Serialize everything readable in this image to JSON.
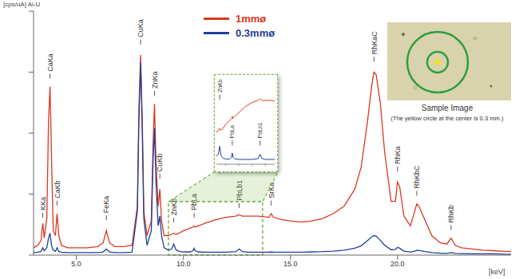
{
  "chart_data": [
    {
      "type": "line",
      "x_label": "[keV]",
      "y_label": "[cps/uA] Al-U",
      "legend": "top",
      "grid": false,
      "tick_labels": "x",
      "x": [
        3.0,
        3.2,
        3.35,
        3.43,
        3.5,
        3.62,
        3.7,
        3.77,
        3.84,
        3.92,
        4.02,
        4.1,
        4.18,
        4.3,
        4.6,
        5.0,
        5.5,
        6.0,
        6.25,
        6.4,
        6.55,
        6.8,
        7.2,
        7.6,
        7.85,
        7.92,
        8.0,
        8.08,
        8.15,
        8.3,
        8.5,
        8.58,
        8.65,
        8.72,
        8.82,
        8.9,
        8.98,
        9.1,
        9.3,
        9.45,
        9.55,
        9.65,
        9.8,
        10.0,
        10.3,
        10.45,
        10.5,
        10.55,
        10.7,
        11.0,
        11.5,
        12.0,
        12.45,
        12.6,
        12.75,
        13.0,
        13.5,
        14.0,
        14.1,
        14.2,
        14.6,
        15.0,
        15.5,
        16.0,
        16.5,
        17.0,
        17.5,
        18.0,
        18.3,
        18.6,
        18.8,
        18.9,
        19.0,
        19.2,
        19.4,
        19.7,
        19.9,
        20.0,
        20.1,
        20.3,
        20.6,
        20.8,
        20.9,
        21.0,
        21.3,
        21.6,
        22.0,
        22.3,
        22.5,
        22.7,
        23.0,
        23.5,
        24.0,
        24.5,
        25.0,
        25.3
      ],
      "series": [
        {
          "name": "1mmø",
          "color": "#d9381e",
          "values": [
            3,
            4,
            6,
            13,
            7,
            15,
            55,
            69,
            40,
            10,
            8,
            17,
            8,
            4,
            3,
            3,
            3,
            3.5,
            5,
            10,
            5,
            3.5,
            3.5,
            4,
            20,
            60,
            82,
            55,
            18,
            8,
            14,
            45,
            62,
            38,
            20,
            27,
            14,
            8,
            8,
            8.5,
            9,
            8.5,
            9,
            10,
            11,
            11.5,
            12,
            11.5,
            12,
            13,
            14.5,
            15.5,
            16,
            16.5,
            16,
            16,
            16,
            15.5,
            17,
            15.5,
            14.5,
            14,
            13.5,
            14,
            15,
            17,
            20,
            27,
            36,
            55,
            70,
            75,
            74,
            62,
            42,
            22,
            22,
            30,
            28,
            16,
            12,
            18,
            21,
            20,
            14,
            8,
            5,
            4.5,
            7,
            4,
            3,
            2.5,
            2,
            1.8,
            1.5,
            1.5
          ]
        },
        {
          "name": "0.3mmø",
          "color": "#1f3e9c",
          "values": [
            1,
            1.2,
            1.5,
            3,
            1.8,
            3,
            7,
            9,
            4,
            2,
            1.5,
            3,
            1.5,
            1.2,
            1,
            1,
            1,
            1,
            1.3,
            2.5,
            1.3,
            1,
            1,
            1.2,
            18,
            55,
            79,
            50,
            15,
            4,
            10,
            38,
            52,
            30,
            12,
            16,
            8,
            3,
            2,
            2.5,
            4.5,
            2.2,
            1.5,
            1.3,
            1.3,
            1.8,
            2.8,
            1.8,
            1.3,
            1.2,
            1.2,
            1.2,
            1.4,
            2.5,
            1.4,
            1.2,
            1.2,
            1.2,
            1.3,
            1.2,
            1.2,
            1.2,
            1.2,
            1.3,
            1.4,
            1.6,
            2,
            2.8,
            3.8,
            6,
            7.5,
            8,
            7.8,
            6,
            4,
            2.2,
            2.3,
            3.2,
            2.8,
            1.6,
            1.3,
            1.6,
            2,
            1.9,
            1.4,
            1,
            0.8,
            0.7,
            1,
            0.7,
            0.6,
            0.5,
            0.5,
            0.5,
            0.4,
            0.4
          ]
        }
      ],
      "xlim": [
        3,
        25.3
      ],
      "ylim": [
        0,
        100
      ],
      "xticks": [
        {
          "value": 5,
          "label": "5.0"
        },
        {
          "value": 10,
          "label": "10.0"
        },
        {
          "value": 15,
          "label": "15.0"
        },
        {
          "value": 20,
          "label": "20.0"
        }
      ],
      "yticks": [
        0,
        25,
        50,
        75,
        100
      ],
      "annotations": [
        {
          "text": "KKa",
          "x": 3.43,
          "y": 15
        },
        {
          "text": "CaKa",
          "x": 3.77,
          "y": 72
        },
        {
          "text": "CaKb",
          "x": 4.1,
          "y": 20
        },
        {
          "text": "FeKa",
          "x": 6.4,
          "y": 14
        },
        {
          "text": "CuKa",
          "x": 8.0,
          "y": 86
        },
        {
          "text": "ZnKa",
          "x": 8.65,
          "y": 65
        },
        {
          "text": "CuKb",
          "x": 8.9,
          "y": 31
        },
        {
          "text": "ZnKb",
          "x": 9.55,
          "y": 13
        },
        {
          "text": "PbLa",
          "x": 10.5,
          "y": 15
        },
        {
          "text": "PbLb1",
          "x": 12.6,
          "y": 19
        },
        {
          "text": "SrKa",
          "x": 14.1,
          "y": 20
        },
        {
          "text": "RhKaC",
          "x": 18.9,
          "y": 79
        },
        {
          "text": "RhKa",
          "x": 20.0,
          "y": 34
        },
        {
          "text": "RhKbC",
          "x": 20.9,
          "y": 24
        },
        {
          "text": "RhKb",
          "x": 22.5,
          "y": 10
        }
      ]
    },
    {
      "type": "line",
      "tick_labels": false,
      "xlim": [
        9.3,
        13.7
      ],
      "ylim": [
        0,
        22
      ],
      "xticks": [
        10,
        11,
        12,
        13
      ],
      "yticks": [
        0,
        22
      ],
      "annotations": [
        {
          "text": "ZnKb",
          "x": 9.55,
          "y": 16
        },
        {
          "text": "PbLa",
          "x": 10.5,
          "y": 4.5
        },
        {
          "text": "PbLb1",
          "x": 12.6,
          "y": 4.5
        }
      ]
    }
  ],
  "sample_image": {
    "title": "Sample Image",
    "caption": "(The yellow circle at the center is 0.3 mm.)"
  }
}
